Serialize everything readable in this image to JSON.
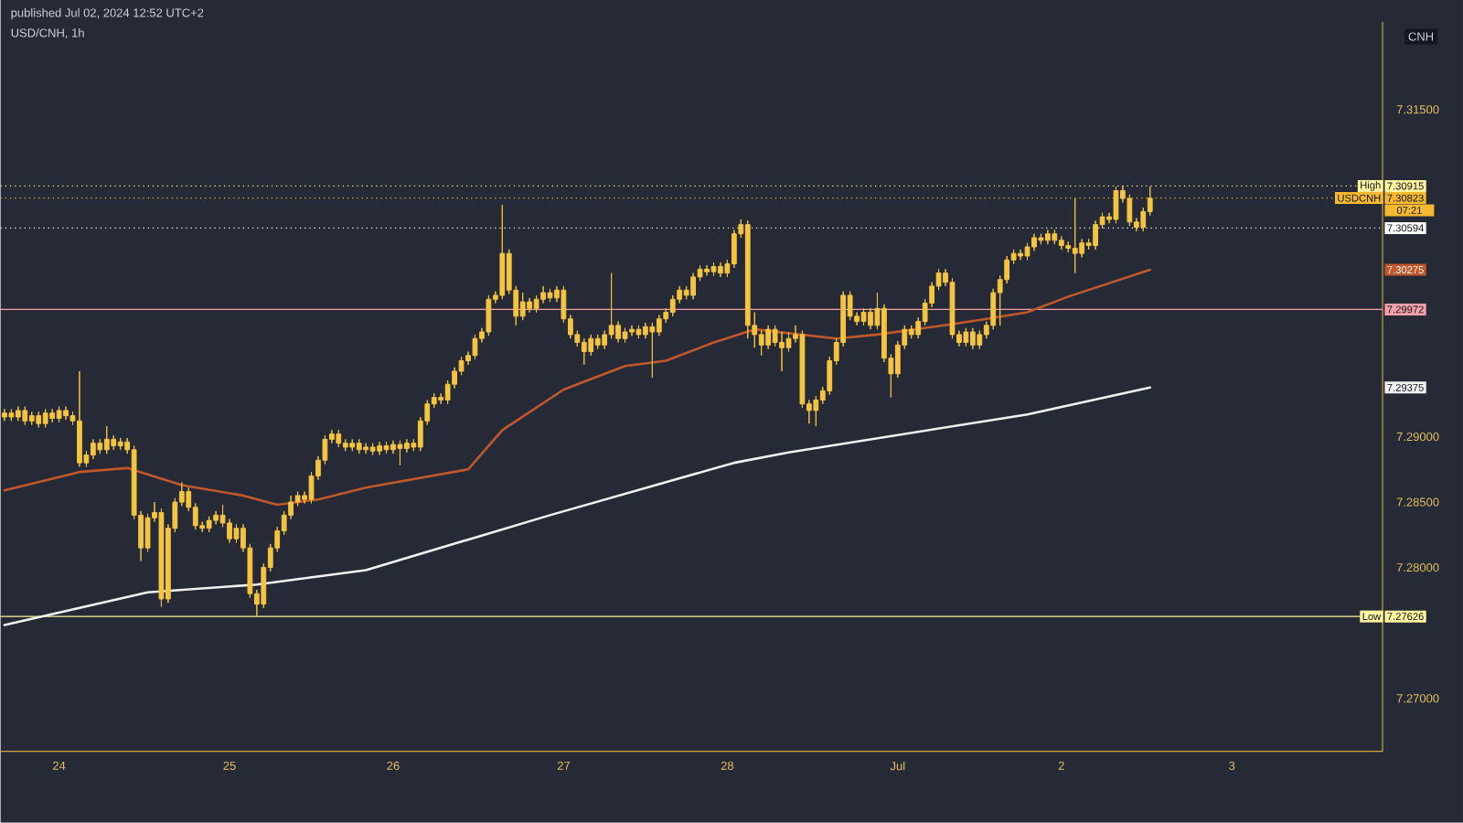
{
  "chart_data": {
    "type": "candlestick",
    "title": "USD/CNH, 1h",
    "subtitle": "published Jul 02, 2024 12:52 UTC+2",
    "ylabel": "CNH",
    "color": "#f5c542",
    "categories": [
      null,
      null,
      null,
      null,
      null,
      null,
      null,
      null,
      "24",
      null,
      null,
      null,
      null,
      null,
      null,
      null,
      null,
      null,
      null,
      null,
      null,
      null,
      null,
      null,
      null,
      null,
      null,
      null,
      null,
      null,
      null,
      null,
      null,
      "25",
      null,
      null,
      null,
      null,
      null,
      null,
      null,
      null,
      null,
      null,
      null,
      null,
      null,
      null,
      null,
      null,
      null,
      null,
      null,
      null,
      null,
      null,
      null,
      "26",
      null,
      null,
      null,
      null,
      null,
      null,
      null,
      null,
      null,
      null,
      null,
      null,
      null,
      null,
      null,
      null,
      null,
      null,
      null,
      null,
      null,
      null,
      null,
      null,
      "27",
      null,
      null,
      null,
      null,
      null,
      null,
      null,
      null,
      null,
      null,
      null,
      null,
      null,
      null,
      null,
      null,
      null,
      null,
      null,
      null,
      null,
      null,
      null,
      "28",
      null,
      null,
      null,
      null,
      null,
      null,
      null,
      null,
      null,
      null,
      null,
      null,
      null,
      null,
      null,
      null,
      null,
      null,
      null,
      null,
      null,
      null,
      null,
      null,
      "Jul",
      null,
      null,
      null,
      null,
      null,
      null,
      null,
      null,
      null,
      null,
      null,
      null,
      null,
      null,
      null,
      null,
      null,
      null,
      null,
      null,
      null,
      null,
      null,
      "2",
      null,
      null,
      null,
      null,
      null,
      null,
      null,
      null,
      null,
      null,
      null,
      null,
      null,
      null,
      null,
      null,
      null,
      null,
      null,
      null,
      null,
      null,
      null,
      null,
      "3",
      null,
      null,
      null,
      null,
      null,
      null,
      null,
      null,
      null,
      null,
      null,
      null,
      null,
      null,
      null,
      null,
      null,
      null,
      null,
      null,
      null
    ],
    "ohlc": [
      [
        7.2915,
        7.2921,
        7.2912,
        7.2918
      ],
      [
        7.2918,
        7.2921,
        7.2912,
        7.2915
      ],
      [
        7.2915,
        7.2923,
        7.2912,
        7.292
      ],
      [
        7.292,
        7.2923,
        7.2909,
        7.2912
      ],
      [
        7.2912,
        7.2919,
        7.2909,
        7.2916
      ],
      [
        7.2916,
        7.2919,
        7.2907,
        7.291
      ],
      [
        7.291,
        7.2921,
        7.2907,
        7.2918
      ],
      [
        7.2918,
        7.2921,
        7.2911,
        7.2914
      ],
      [
        7.2914,
        7.2923,
        7.2911,
        7.292
      ],
      [
        7.292,
        7.2923,
        7.2913,
        7.2916
      ],
      [
        7.2916,
        7.2919,
        7.2909,
        7.2912
      ],
      [
        7.2912,
        7.295,
        7.2877,
        7.288
      ],
      [
        7.288,
        7.2889,
        7.2877,
        7.2886
      ],
      [
        7.2886,
        7.2898,
        7.2883,
        7.2895
      ],
      [
        7.2895,
        7.2898,
        7.2887,
        7.289
      ],
      [
        7.289,
        7.2908,
        7.2887,
        7.2898
      ],
      [
        7.2898,
        7.2901,
        7.289,
        7.2893
      ],
      [
        7.2893,
        7.2899,
        7.289,
        7.2896
      ],
      [
        7.2896,
        7.2899,
        7.2887,
        7.289
      ],
      [
        7.289,
        7.2893,
        7.2837,
        7.284
      ],
      [
        7.284,
        7.2843,
        7.2805,
        7.2815
      ],
      [
        7.2815,
        7.2841,
        7.2812,
        7.2838
      ],
      [
        7.2838,
        7.285,
        7.2835,
        7.2842
      ],
      [
        7.2842,
        7.2845,
        7.277,
        7.2776
      ],
      [
        7.2776,
        7.2833,
        7.2773,
        7.283
      ],
      [
        7.283,
        7.2853,
        7.2827,
        7.285
      ],
      [
        7.285,
        7.2865,
        7.2847,
        7.2858
      ],
      [
        7.2858,
        7.2861,
        7.2843,
        7.2846
      ],
      [
        7.2846,
        7.2849,
        7.2829,
        7.2832
      ],
      [
        7.2832,
        7.2835,
        7.2827,
        7.283
      ],
      [
        7.283,
        7.2839,
        7.2827,
        7.2836
      ],
      [
        7.2836,
        7.2843,
        7.2833,
        7.284
      ],
      [
        7.284,
        7.2848,
        7.2831,
        7.2834
      ],
      [
        7.2834,
        7.2837,
        7.2819,
        7.2822
      ],
      [
        7.2822,
        7.2833,
        7.2819,
        7.283
      ],
      [
        7.283,
        7.2833,
        7.2812,
        7.2815
      ],
      [
        7.2815,
        7.2818,
        7.2777,
        7.278
      ],
      [
        7.278,
        7.2783,
        7.2763,
        7.2772
      ],
      [
        7.2772,
        7.2803,
        7.2769,
        7.28
      ],
      [
        7.28,
        7.2818,
        7.2797,
        7.2815
      ],
      [
        7.2815,
        7.2831,
        7.2812,
        7.2828
      ],
      [
        7.2828,
        7.2843,
        7.2825,
        7.284
      ],
      [
        7.284,
        7.2855,
        7.2837,
        7.285
      ],
      [
        7.285,
        7.2858,
        7.2847,
        7.2855
      ],
      [
        7.2855,
        7.2858,
        7.2849,
        7.2852
      ],
      [
        7.2852,
        7.2873,
        7.2849,
        7.287
      ],
      [
        7.287,
        7.2885,
        7.2867,
        7.2882
      ],
      [
        7.2882,
        7.2901,
        7.2879,
        7.2898
      ],
      [
        7.2898,
        7.2905,
        7.2895,
        7.2902
      ],
      [
        7.2902,
        7.2905,
        7.2892,
        7.2895
      ],
      [
        7.2895,
        7.2898,
        7.2889,
        7.2892
      ],
      [
        7.2892,
        7.2898,
        7.2889,
        7.2895
      ],
      [
        7.2895,
        7.2898,
        7.2887,
        7.289
      ],
      [
        7.289,
        7.2895,
        7.2887,
        7.2892
      ],
      [
        7.2892,
        7.2895,
        7.2886,
        7.2889
      ],
      [
        7.2889,
        7.2896,
        7.2886,
        7.2893
      ],
      [
        7.2893,
        7.2896,
        7.2887,
        7.289
      ],
      [
        7.289,
        7.2897,
        7.2887,
        7.2894
      ],
      [
        7.2894,
        7.2897,
        7.2878,
        7.2891
      ],
      [
        7.2891,
        7.2898,
        7.2888,
        7.2895
      ],
      [
        7.2895,
        7.2898,
        7.2889,
        7.2892
      ],
      [
        7.2892,
        7.2915,
        7.2889,
        7.2912
      ],
      [
        7.2912,
        7.2928,
        7.2909,
        7.2925
      ],
      [
        7.2925,
        7.2933,
        7.2922,
        7.293
      ],
      [
        7.293,
        7.2933,
        7.2925,
        7.2928
      ],
      [
        7.2928,
        7.2943,
        7.2925,
        7.294
      ],
      [
        7.294,
        7.2953,
        7.2937,
        7.295
      ],
      [
        7.295,
        7.2961,
        7.2947,
        7.2958
      ],
      [
        7.2958,
        7.2965,
        7.2955,
        7.2962
      ],
      [
        7.2962,
        7.2978,
        7.2959,
        7.2975
      ],
      [
        7.2975,
        7.2983,
        7.2972,
        7.298
      ],
      [
        7.298,
        7.3008,
        7.2977,
        7.3005
      ],
      [
        7.3005,
        7.3011,
        7.3002,
        7.3008
      ],
      [
        7.3008,
        7.3077,
        7.3005,
        7.304
      ],
      [
        7.304,
        7.3043,
        7.3009,
        7.3012
      ],
      [
        7.3012,
        7.3015,
        7.2985,
        7.2992
      ],
      [
        7.2992,
        7.301,
        7.2989,
        7.3003
      ],
      [
        7.3003,
        7.3006,
        7.2995,
        7.2998
      ],
      [
        7.2998,
        7.3008,
        7.2995,
        7.3005
      ],
      [
        7.3005,
        7.3015,
        7.3002,
        7.301
      ],
      [
        7.301,
        7.3013,
        7.3003,
        7.3006
      ],
      [
        7.3006,
        7.3015,
        7.3003,
        7.3012
      ],
      [
        7.3012,
        7.3015,
        7.2987,
        7.299
      ],
      [
        7.299,
        7.2993,
        7.2975,
        7.2978
      ],
      [
        7.2978,
        7.2981,
        7.2969,
        7.2972
      ],
      [
        7.2972,
        7.2975,
        7.2955,
        7.2965
      ],
      [
        7.2965,
        7.2978,
        7.2962,
        7.2975
      ],
      [
        7.2975,
        7.2978,
        7.2967,
        7.297
      ],
      [
        7.297,
        7.2981,
        7.2967,
        7.2978
      ],
      [
        7.2978,
        7.3025,
        7.2975,
        7.2985
      ],
      [
        7.2985,
        7.2988,
        7.2972,
        7.2975
      ],
      [
        7.2975,
        7.2983,
        7.2972,
        7.298
      ],
      [
        7.298,
        7.2985,
        7.2977,
        7.2982
      ],
      [
        7.2982,
        7.2985,
        7.2975,
        7.2978
      ],
      [
        7.2978,
        7.2987,
        7.2975,
        7.2984
      ],
      [
        7.2984,
        7.2987,
        7.2945,
        7.298
      ],
      [
        7.298,
        7.2993,
        7.2977,
        7.299
      ],
      [
        7.299,
        7.2998,
        7.2987,
        7.2995
      ],
      [
        7.2995,
        7.3008,
        7.2992,
        7.3005
      ],
      [
        7.3005,
        7.3015,
        7.3002,
        7.3012
      ],
      [
        7.3012,
        7.3015,
        7.3005,
        7.3008
      ],
      [
        7.3008,
        7.3025,
        7.3005,
        7.3022
      ],
      [
        7.3022,
        7.3031,
        7.3019,
        7.3028
      ],
      [
        7.3028,
        7.3031,
        7.3023,
        7.3026
      ],
      [
        7.3026,
        7.3033,
        7.3023,
        7.303
      ],
      [
        7.303,
        7.3033,
        7.3022,
        7.3025
      ],
      [
        7.3025,
        7.3035,
        7.3022,
        7.3032
      ],
      [
        7.3032,
        7.3058,
        7.3029,
        7.3055
      ],
      [
        7.3055,
        7.3066,
        7.3052,
        7.3062
      ],
      [
        7.3062,
        7.3065,
        7.2975,
        7.2985
      ],
      [
        7.2985,
        7.2995,
        7.2968,
        7.2978
      ],
      [
        7.2978,
        7.2981,
        7.2962,
        7.297
      ],
      [
        7.297,
        7.2985,
        7.2967,
        7.2982
      ],
      [
        7.2982,
        7.2985,
        7.2969,
        7.2972
      ],
      [
        7.2972,
        7.298,
        7.295,
        7.2968
      ],
      [
        7.2968,
        7.298,
        7.2965,
        7.2975
      ],
      [
        7.2975,
        7.2985,
        7.2972,
        7.2978
      ],
      [
        7.2978,
        7.2981,
        7.2922,
        7.2925
      ],
      [
        7.2925,
        7.2928,
        7.291,
        7.292
      ],
      [
        7.292,
        7.2931,
        7.2908,
        7.2928
      ],
      [
        7.2928,
        7.2938,
        7.2925,
        7.2935
      ],
      [
        7.2935,
        7.2961,
        7.2932,
        7.2958
      ],
      [
        7.2958,
        7.2975,
        7.2955,
        7.2972
      ],
      [
        7.2972,
        7.3011,
        7.2969,
        7.3008
      ],
      [
        7.3008,
        7.3011,
        7.2989,
        7.2992
      ],
      [
        7.2992,
        7.2995,
        7.2985,
        7.2988
      ],
      [
        7.2988,
        7.2998,
        7.2985,
        7.2995
      ],
      [
        7.2995,
        7.2998,
        7.2982,
        7.2985
      ],
      [
        7.2985,
        7.301,
        7.2982,
        7.2998
      ],
      [
        7.2998,
        7.3001,
        7.2957,
        7.296
      ],
      [
        7.296,
        7.2963,
        7.293,
        7.2948
      ],
      [
        7.2948,
        7.2973,
        7.2945,
        7.297
      ],
      [
        7.297,
        7.2985,
        7.2967,
        7.2982
      ],
      [
        7.2982,
        7.2985,
        7.2975,
        7.2978
      ],
      [
        7.2978,
        7.2991,
        7.2975,
        7.2988
      ],
      [
        7.2988,
        7.3005,
        7.2985,
        7.3002
      ],
      [
        7.3002,
        7.3018,
        7.2999,
        7.3015
      ],
      [
        7.3015,
        7.3028,
        7.3012,
        7.3025
      ],
      [
        7.3025,
        7.3028,
        7.3015,
        7.3018
      ],
      [
        7.3018,
        7.3021,
        7.2975,
        7.2978
      ],
      [
        7.2978,
        7.2981,
        7.2969,
        7.2972
      ],
      [
        7.2972,
        7.2983,
        7.2969,
        7.298
      ],
      [
        7.298,
        7.2983,
        7.2967,
        7.297
      ],
      [
        7.297,
        7.2981,
        7.2967,
        7.2978
      ],
      [
        7.2978,
        7.2988,
        7.2975,
        7.2985
      ],
      [
        7.2985,
        7.3013,
        7.2982,
        7.301
      ],
      [
        7.301,
        7.3023,
        7.2985,
        7.302
      ],
      [
        7.302,
        7.3038,
        7.3017,
        7.3035
      ],
      [
        7.3035,
        7.3043,
        7.3032,
        7.304
      ],
      [
        7.304,
        7.3043,
        7.3035,
        7.3038
      ],
      [
        7.3038,
        7.3048,
        7.3035,
        7.3045
      ],
      [
        7.3045,
        7.3055,
        7.3042,
        7.3052
      ],
      [
        7.3052,
        7.3055,
        7.3047,
        7.305
      ],
      [
        7.305,
        7.3058,
        7.3047,
        7.3055
      ],
      [
        7.3055,
        7.3058,
        7.3047,
        7.305
      ],
      [
        7.305,
        7.3053,
        7.3043,
        7.3046
      ],
      [
        7.3046,
        7.3049,
        7.3041,
        7.3044
      ],
      [
        7.3044,
        7.3082,
        7.3025,
        7.304
      ],
      [
        7.304,
        7.3051,
        7.3037,
        7.3048
      ],
      [
        7.3048,
        7.3051,
        7.3043,
        7.3046
      ],
      [
        7.3046,
        7.3065,
        7.3043,
        7.3062
      ],
      [
        7.3062,
        7.3071,
        7.3059,
        7.3068
      ],
      [
        7.3068,
        7.3071,
        7.3063,
        7.3066
      ],
      [
        7.3066,
        7.3091,
        7.3063,
        7.3088
      ],
      [
        7.3088,
        7.30915,
        7.3079,
        7.3082
      ],
      [
        7.3082,
        7.3085,
        7.3061,
        7.3064
      ],
      [
        7.3064,
        7.3067,
        7.3057,
        7.306
      ],
      [
        7.306,
        7.3075,
        7.3057,
        7.3072
      ],
      [
        7.3072,
        7.3091,
        7.3069,
        7.30823
      ],
      null,
      null,
      null,
      null,
      null,
      null,
      null,
      null,
      null,
      null,
      null,
      null,
      null,
      null,
      null,
      null,
      null,
      null,
      null,
      null,
      null,
      null,
      null,
      null,
      null,
      null,
      null,
      null,
      null,
      null,
      null,
      null,
      null
    ],
    "series": [
      {
        "type": "line",
        "color": "#c0582c",
        "values": [
          7.2859,
          null,
          null,
          null,
          null,
          null,
          null,
          null,
          null,
          null,
          null,
          7.2873,
          null,
          null,
          null,
          null,
          null,
          null,
          7.2876,
          null,
          null,
          null,
          null,
          null,
          null,
          null,
          7.2863,
          null,
          null,
          null,
          null,
          null,
          null,
          null,
          null,
          7.2855,
          null,
          null,
          null,
          null,
          7.2848,
          null,
          null,
          null,
          null,
          null,
          7.2852,
          null,
          null,
          null,
          null,
          null,
          null,
          7.2861,
          null,
          null,
          null,
          null,
          null,
          null,
          null,
          null,
          null,
          null,
          null,
          null,
          null,
          null,
          7.2875,
          null,
          null,
          null,
          null,
          7.2905,
          null,
          null,
          null,
          null,
          null,
          null,
          null,
          null,
          7.2936,
          null,
          null,
          null,
          null,
          null,
          null,
          null,
          null,
          7.2954,
          null,
          null,
          null,
          null,
          null,
          7.2958,
          null,
          null,
          null,
          null,
          null,
          null,
          7.2972,
          null,
          null,
          null,
          null,
          null,
          7.2982,
          null,
          null,
          null,
          null,
          null,
          null,
          null,
          null,
          null,
          null,
          null,
          7.2975,
          null,
          null,
          null,
          null,
          null,
          7.2978,
          null,
          null,
          null,
          null,
          null,
          null,
          null,
          null,
          null,
          null,
          7.2986,
          null,
          null,
          null,
          null,
          7.299,
          null,
          null,
          null,
          null,
          null,
          7.2995,
          null,
          null,
          null,
          null,
          null,
          7.3007,
          null,
          null,
          null,
          null,
          null,
          null,
          null,
          null,
          null,
          null,
          null,
          7.30275,
          null,
          null,
          null,
          null,
          null,
          null,
          null,
          null,
          null,
          null,
          null,
          null,
          null,
          null,
          null,
          null,
          null,
          null,
          null,
          null,
          null,
          null,
          null,
          null,
          null,
          null,
          null,
          null,
          null,
          null,
          null,
          null,
          null
        ],
        "value_labels": [
          null,
          null,
          null,
          null,
          null,
          null,
          null,
          null,
          null,
          null,
          null,
          null,
          null,
          null,
          null,
          null,
          null,
          null,
          null,
          null,
          null,
          null,
          null,
          null,
          null,
          null,
          null,
          null,
          null,
          null,
          null,
          null,
          null,
          null,
          null,
          null,
          null,
          null,
          null,
          null,
          null,
          null,
          null,
          null,
          null,
          null,
          null,
          null,
          null,
          null,
          null,
          null,
          null,
          null,
          null,
          null,
          null,
          null,
          null,
          null,
          null,
          null,
          null,
          null,
          null,
          null,
          null,
          null,
          null,
          null,
          null,
          null,
          null,
          null,
          null,
          null,
          null,
          null,
          null,
          null,
          null,
          null,
          null,
          null,
          null,
          null,
          null,
          null,
          null,
          null,
          null,
          null,
          null,
          null,
          null,
          null,
          null,
          null,
          null,
          null,
          null,
          null,
          null,
          null,
          null,
          null,
          null,
          null,
          null,
          null,
          null,
          null,
          null,
          null,
          null,
          null,
          null,
          null,
          null,
          null,
          null,
          null,
          null,
          null,
          null,
          null,
          null,
          null,
          null,
          null,
          null,
          null,
          null,
          null,
          null,
          null,
          null,
          null,
          null,
          null,
          null,
          null,
          null,
          null,
          null,
          null,
          null,
          null,
          null,
          null,
          null,
          null,
          null,
          null,
          null,
          null,
          null,
          null,
          null,
          null,
          null,
          null,
          null,
          null,
          null,
          null,
          null,
          null,
          null,
          null,
          null,
          null,
          null,
          null,
          null,
          null,
          null,
          null,
          null,
          null,
          null,
          null,
          null,
          null,
          null,
          null,
          null,
          null,
          null,
          null,
          null,
          null,
          null,
          null,
          null,
          null,
          null,
          null,
          null,
          null,
          null,
          null
        ]
      },
      {
        "type": "line",
        "color": "#f2f2f2",
        "values": [
          7.2756,
          null,
          null,
          null,
          null,
          null,
          null,
          null,
          null,
          null,
          null,
          null,
          null,
          null,
          null,
          null,
          null,
          null,
          null,
          null,
          null,
          7.2781,
          null,
          null,
          null,
          null,
          null,
          null,
          null,
          null,
          null,
          null,
          null,
          null,
          null,
          null,
          null,
          7.2787,
          null,
          null,
          null,
          null,
          null,
          null,
          null,
          null,
          null,
          null,
          null,
          null,
          null,
          null,
          null,
          7.2798,
          null,
          null,
          null,
          null,
          null,
          null,
          null,
          null,
          null,
          null,
          null,
          null,
          null,
          null,
          null,
          null,
          null,
          null,
          null,
          null,
          null,
          null,
          null,
          null,
          null,
          null,
          7.284,
          null,
          null,
          null,
          null,
          null,
          null,
          null,
          null,
          null,
          null,
          null,
          null,
          null,
          null,
          null,
          null,
          null,
          null,
          null,
          null,
          null,
          null,
          null,
          null,
          null,
          null,
          7.288,
          null,
          null,
          null,
          null,
          null,
          null,
          null,
          7.2888,
          null,
          null,
          null,
          null,
          null,
          null,
          null,
          null,
          null,
          null,
          null,
          null,
          null,
          null,
          null,
          null,
          null,
          null,
          null,
          null,
          null,
          null,
          null,
          null,
          null,
          null,
          null,
          null,
          null,
          null,
          null,
          null,
          null,
          null,
          7.2917,
          null,
          null,
          null,
          null,
          null,
          null,
          null,
          null,
          null,
          null,
          null,
          null,
          null,
          null,
          null,
          null,
          null,
          7.29375,
          null,
          null,
          null,
          null,
          null,
          null,
          null,
          null,
          null,
          null,
          null,
          null,
          null,
          null,
          null,
          null,
          null,
          null,
          null,
          null,
          null,
          null,
          null,
          null,
          null,
          null,
          null,
          null,
          null,
          null,
          null,
          null,
          null
        ],
        "value_labels": [
          null,
          null,
          null,
          null,
          null,
          null,
          null,
          null,
          null,
          null,
          null,
          null,
          null,
          null,
          null,
          null,
          null,
          null,
          null,
          null,
          null,
          null,
          null,
          null,
          null,
          null,
          null,
          null,
          null,
          null,
          null,
          null,
          null,
          null,
          null,
          null,
          null,
          null,
          null,
          null,
          null,
          null,
          null,
          null,
          null,
          null,
          null,
          null,
          null,
          null,
          null,
          null,
          null,
          null,
          null,
          null,
          null,
          null,
          null,
          null,
          null,
          null,
          null,
          null,
          null,
          null,
          null,
          null,
          null,
          null,
          null,
          null,
          null,
          null,
          null,
          null,
          null,
          null,
          null,
          null,
          null,
          null,
          null,
          null,
          null,
          null,
          null,
          null,
          null,
          null,
          null,
          null,
          null,
          null,
          null,
          null,
          null,
          null,
          null,
          null,
          null,
          null,
          null,
          null,
          null,
          null,
          null,
          null,
          null,
          null,
          null,
          null,
          null,
          null,
          null,
          null,
          null,
          null,
          null,
          null,
          null,
          null,
          null,
          null,
          null,
          null,
          null,
          null,
          null,
          null,
          null,
          null,
          null,
          null,
          null,
          null,
          null,
          null,
          null,
          null,
          null,
          null,
          null,
          null,
          null,
          null,
          null,
          null,
          null,
          null,
          null,
          null,
          null,
          null,
          null,
          null,
          null,
          null,
          null,
          null,
          null,
          null,
          null,
          null,
          null,
          null,
          null,
          null,
          null,
          null,
          null,
          null,
          null,
          null,
          null,
          null,
          null,
          null,
          null,
          null,
          null,
          null,
          null,
          null,
          null,
          null,
          null,
          null,
          null,
          null,
          null,
          null,
          null,
          null,
          null,
          null,
          null,
          null,
          null,
          null,
          null,
          null
        ]
      }
    ],
    "ylim": [
      7.26595,
      7.32169
    ],
    "yticks": [
      {
        "value": 7.27,
        "label": "7.27000"
      },
      {
        "value": 7.28,
        "label": "7.28000"
      },
      {
        "value": 7.285,
        "label": "7.28500"
      },
      {
        "value": 7.29,
        "label": "7.29000"
      },
      {
        "value": 7.315,
        "label": "7.31500"
      }
    ],
    "ref_lines": [
      {
        "axis": "y",
        "value": 7.30915,
        "label": "High",
        "color": "#fff59d",
        "line_style": "dotted"
      },
      {
        "axis": "y",
        "value": 7.30823,
        "label": "USDCNH",
        "color": "#f5b82e",
        "line_style": "dotted"
      },
      {
        "axis": "y",
        "value": 7.30594,
        "color": "#ffffff",
        "line_style": "dotted"
      },
      {
        "axis": "y",
        "value": 7.29972,
        "color": "#f4a0a8",
        "line_style": "solid"
      },
      {
        "axis": "y",
        "value": 7.27626,
        "label": "Low",
        "color": "#fff59d",
        "line_style": "solid"
      }
    ],
    "annotations": [
      "7.30915",
      "7.30823",
      "07:21",
      "7.30594",
      "7.30275",
      "7.29972",
      "7.29375",
      "7.27626"
    ]
  }
}
